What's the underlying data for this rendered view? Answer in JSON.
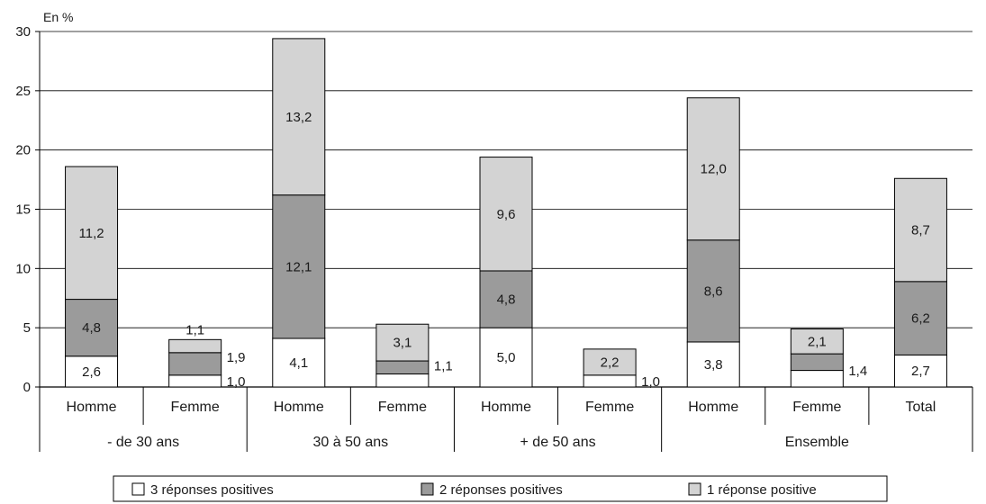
{
  "chart_data": {
    "type": "bar",
    "stacked": true,
    "ylabel": "En %",
    "ylim": [
      0,
      30
    ],
    "yticks": [
      0,
      5,
      10,
      15,
      20,
      25,
      30
    ],
    "grid": true,
    "categories": [
      "Homme",
      "Femme",
      "Homme",
      "Femme",
      "Homme",
      "Femme",
      "Homme",
      "Femme",
      "Total"
    ],
    "groups": [
      {
        "label": "- de 30 ans",
        "span": 2
      },
      {
        "label": "30 à 50 ans",
        "span": 2
      },
      {
        "label": "+ de 50 ans",
        "span": 2
      },
      {
        "label": "Ensemble",
        "span": 3
      }
    ],
    "series": [
      {
        "name": "3 réponses positives",
        "color": "#ffffff",
        "values": [
          2.6,
          1.0,
          4.1,
          1.1,
          5.0,
          1.0,
          3.8,
          1.4,
          2.7
        ],
        "labels": [
          "2,6",
          "1,0",
          "4,1",
          "1,1",
          "5,0",
          "1,0",
          "3,8",
          "1,4",
          "2,7"
        ]
      },
      {
        "name": "2 réponses positives",
        "color": "#9b9b9b",
        "values": [
          4.8,
          1.9,
          12.1,
          1.1,
          4.8,
          0,
          8.6,
          1.4,
          6.2
        ],
        "labels": [
          "4,8",
          "1,9",
          "12,1",
          "",
          "4,8",
          "",
          "8,6",
          "",
          "6,2"
        ]
      },
      {
        "name": "1 réponse positive",
        "color": "#d3d3d3",
        "values": [
          11.2,
          1.1,
          13.2,
          3.1,
          9.6,
          2.2,
          12.0,
          2.1,
          8.7
        ],
        "labels": [
          "11,2",
          "1,1",
          "13,2",
          "3,1",
          "9,6",
          "2,2",
          "12,0",
          "2,1",
          "8,7"
        ]
      }
    ],
    "legend": "bottom"
  }
}
